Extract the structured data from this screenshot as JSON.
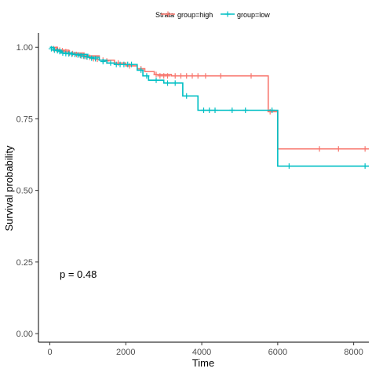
{
  "chart_data": {
    "type": "line",
    "subtype": "kaplan-meier survival curve",
    "title": "",
    "xlabel": "Time",
    "ylabel": "Survival probability",
    "xlim": [
      -300,
      8400
    ],
    "ylim": [
      -0.03,
      1.05
    ],
    "x_ticks": [
      0,
      2000,
      4000,
      6000,
      8000
    ],
    "x_tick_labels": [
      "0",
      "2000",
      "4000",
      "6000",
      "8000"
    ],
    "y_ticks": [
      0,
      0.25,
      0.5,
      0.75,
      1
    ],
    "y_tick_labels": [
      "0.00",
      "0.25",
      "0.50",
      "0.75",
      "1.00"
    ],
    "grid": false,
    "legend": {
      "title": "Strata",
      "placement": "top",
      "entries": [
        "group=high",
        "group=low"
      ]
    },
    "annotation": "p = 0.48",
    "series": [
      {
        "name": "group=high",
        "color": "#F8766D",
        "steps": [
          [
            0,
            1.0
          ],
          [
            200,
            0.99
          ],
          [
            500,
            0.98
          ],
          [
            900,
            0.97
          ],
          [
            1300,
            0.955
          ],
          [
            1700,
            0.945
          ],
          [
            2000,
            0.935
          ],
          [
            2300,
            0.925
          ],
          [
            2500,
            0.915
          ],
          [
            2750,
            0.905
          ],
          [
            3200,
            0.9
          ],
          [
            5750,
            0.775
          ],
          [
            6000,
            0.645
          ],
          [
            8400,
            0.645
          ]
        ],
        "censored": [
          [
            100,
            0.995
          ],
          [
            180,
            0.993
          ],
          [
            260,
            0.99
          ],
          [
            330,
            0.988
          ],
          [
            420,
            0.985
          ],
          [
            520,
            0.98
          ],
          [
            600,
            0.978
          ],
          [
            700,
            0.975
          ],
          [
            800,
            0.972
          ],
          [
            880,
            0.97
          ],
          [
            950,
            0.968
          ],
          [
            1050,
            0.965
          ],
          [
            1150,
            0.96
          ],
          [
            1250,
            0.958
          ],
          [
            1400,
            0.955
          ],
          [
            1500,
            0.952
          ],
          [
            1800,
            0.945
          ],
          [
            2100,
            0.935
          ],
          [
            2400,
            0.925
          ],
          [
            2800,
            0.905
          ],
          [
            2900,
            0.9
          ],
          [
            3000,
            0.9
          ],
          [
            3100,
            0.9
          ],
          [
            3300,
            0.9
          ],
          [
            3450,
            0.9
          ],
          [
            3600,
            0.9
          ],
          [
            3750,
            0.9
          ],
          [
            3900,
            0.9
          ],
          [
            4100,
            0.9
          ],
          [
            4500,
            0.9
          ],
          [
            5300,
            0.9
          ],
          [
            5800,
            0.775
          ],
          [
            7100,
            0.645
          ],
          [
            7600,
            0.645
          ],
          [
            8300,
            0.645
          ]
        ]
      },
      {
        "name": "group=low",
        "color": "#00BFC4",
        "steps": [
          [
            0,
            1.0
          ],
          [
            100,
            0.99
          ],
          [
            300,
            0.98
          ],
          [
            600,
            0.975
          ],
          [
            1000,
            0.965
          ],
          [
            1300,
            0.955
          ],
          [
            1500,
            0.945
          ],
          [
            1700,
            0.94
          ],
          [
            2300,
            0.92
          ],
          [
            2450,
            0.9
          ],
          [
            2600,
            0.885
          ],
          [
            3000,
            0.875
          ],
          [
            3500,
            0.83
          ],
          [
            3900,
            0.78
          ],
          [
            5750,
            0.78
          ],
          [
            6000,
            0.585
          ],
          [
            8400,
            0.585
          ]
        ],
        "censored": [
          [
            40,
            0.995
          ],
          [
            120,
            0.99
          ],
          [
            200,
            0.988
          ],
          [
            260,
            0.985
          ],
          [
            340,
            0.98
          ],
          [
            420,
            0.978
          ],
          [
            500,
            0.977
          ],
          [
            580,
            0.976
          ],
          [
            660,
            0.975
          ],
          [
            740,
            0.973
          ],
          [
            820,
            0.97
          ],
          [
            900,
            0.968
          ],
          [
            980,
            0.966
          ],
          [
            1100,
            0.962
          ],
          [
            1200,
            0.96
          ],
          [
            1400,
            0.95
          ],
          [
            1600,
            0.945
          ],
          [
            1750,
            0.94
          ],
          [
            1850,
            0.94
          ],
          [
            1950,
            0.94
          ],
          [
            2050,
            0.94
          ],
          [
            2150,
            0.94
          ],
          [
            2400,
            0.92
          ],
          [
            2550,
            0.9
          ],
          [
            2800,
            0.885
          ],
          [
            3100,
            0.875
          ],
          [
            3300,
            0.875
          ],
          [
            3600,
            0.83
          ],
          [
            4050,
            0.78
          ],
          [
            4200,
            0.78
          ],
          [
            4350,
            0.78
          ],
          [
            4800,
            0.78
          ],
          [
            5150,
            0.78
          ],
          [
            5850,
            0.78
          ],
          [
            6300,
            0.585
          ],
          [
            8300,
            0.585
          ]
        ]
      }
    ]
  }
}
